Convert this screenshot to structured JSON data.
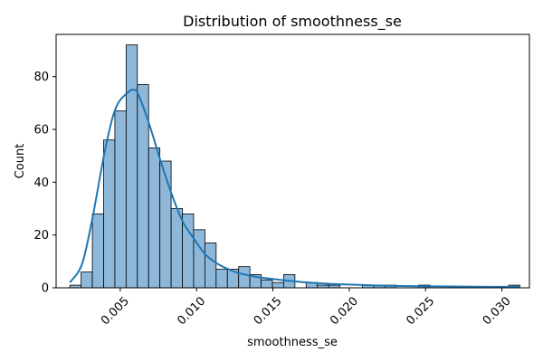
{
  "chart_data": {
    "type": "bar",
    "title": "Distribution of smoothness_se",
    "xlabel": "smoothness_se",
    "ylabel": "Count",
    "xlim": [
      0.0008,
      0.0318
    ],
    "ylim": [
      0,
      96
    ],
    "x_ticks": [
      "0.005",
      "0.010",
      "0.015",
      "0.020",
      "0.025",
      "0.030"
    ],
    "x_tick_values": [
      0.005,
      0.01,
      0.015,
      0.02,
      0.025,
      0.03
    ],
    "y_ticks": [
      "0",
      "20",
      "40",
      "60",
      "80"
    ],
    "y_tick_values": [
      0,
      20,
      40,
      60,
      80
    ],
    "grid": false,
    "bin_start": 0.0017,
    "bin_width": 0.000737,
    "values": [
      1,
      6,
      28,
      56,
      67,
      92,
      77,
      53,
      48,
      30,
      28,
      22,
      17,
      7,
      7,
      8,
      5,
      3,
      2,
      5,
      0,
      2,
      1,
      1,
      0,
      0,
      1,
      1,
      1,
      0,
      0,
      1,
      0,
      0,
      0,
      0,
      0,
      0,
      0,
      1
    ],
    "kde": {
      "x": [
        0.0017,
        0.0025,
        0.0032,
        0.004,
        0.0047,
        0.0055,
        0.0059,
        0.0062,
        0.0069,
        0.0077,
        0.0084,
        0.0091,
        0.0099,
        0.0106,
        0.0114,
        0.0121,
        0.0128,
        0.0136,
        0.0143,
        0.0158,
        0.0173,
        0.0187,
        0.0202,
        0.0224,
        0.0246,
        0.0268,
        0.029,
        0.0312
      ],
      "y": [
        2,
        9,
        27,
        52,
        68,
        74,
        75,
        73,
        62,
        47,
        35,
        25,
        18,
        12.5,
        9,
        7,
        5.5,
        4.5,
        3.8,
        2.8,
        2,
        1.5,
        1.2,
        0.8,
        0.6,
        0.5,
        0.4,
        0.4
      ]
    },
    "colors": {
      "bar_fill": "#8db8da",
      "bar_edge": "#000000",
      "kde_line": "#1f77b4"
    }
  }
}
